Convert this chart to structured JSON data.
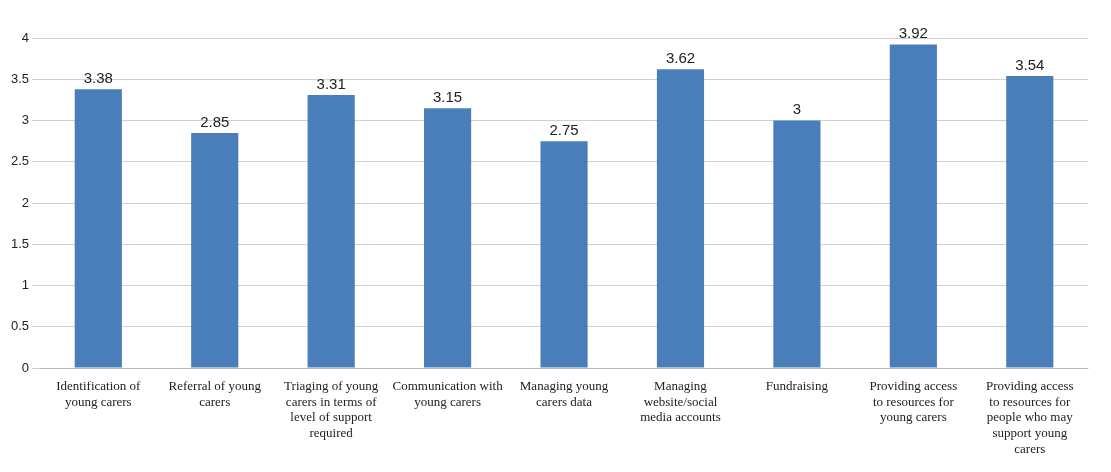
{
  "chart_data": {
    "type": "bar",
    "categories": [
      "Identification of young carers",
      "Referral of young carers",
      "Triaging of young carers in terms of level of support required",
      "Communication with young carers",
      "Managing young carers data",
      "Managing website/social media accounts",
      "Fundraising",
      "Providing access to resources for young carers",
      "Providing access to resources for people who may support young carers"
    ],
    "values": [
      3.38,
      2.85,
      3.31,
      3.15,
      2.75,
      3.62,
      3,
      3.92,
      3.54
    ],
    "color": "#4a7ebb",
    "ylim": [
      0,
      4
    ],
    "yticks": [
      0,
      0.5,
      1,
      1.5,
      2,
      2.5,
      3,
      3.5,
      4
    ],
    "grid": "y",
    "data_labels": true,
    "legend": false
  }
}
